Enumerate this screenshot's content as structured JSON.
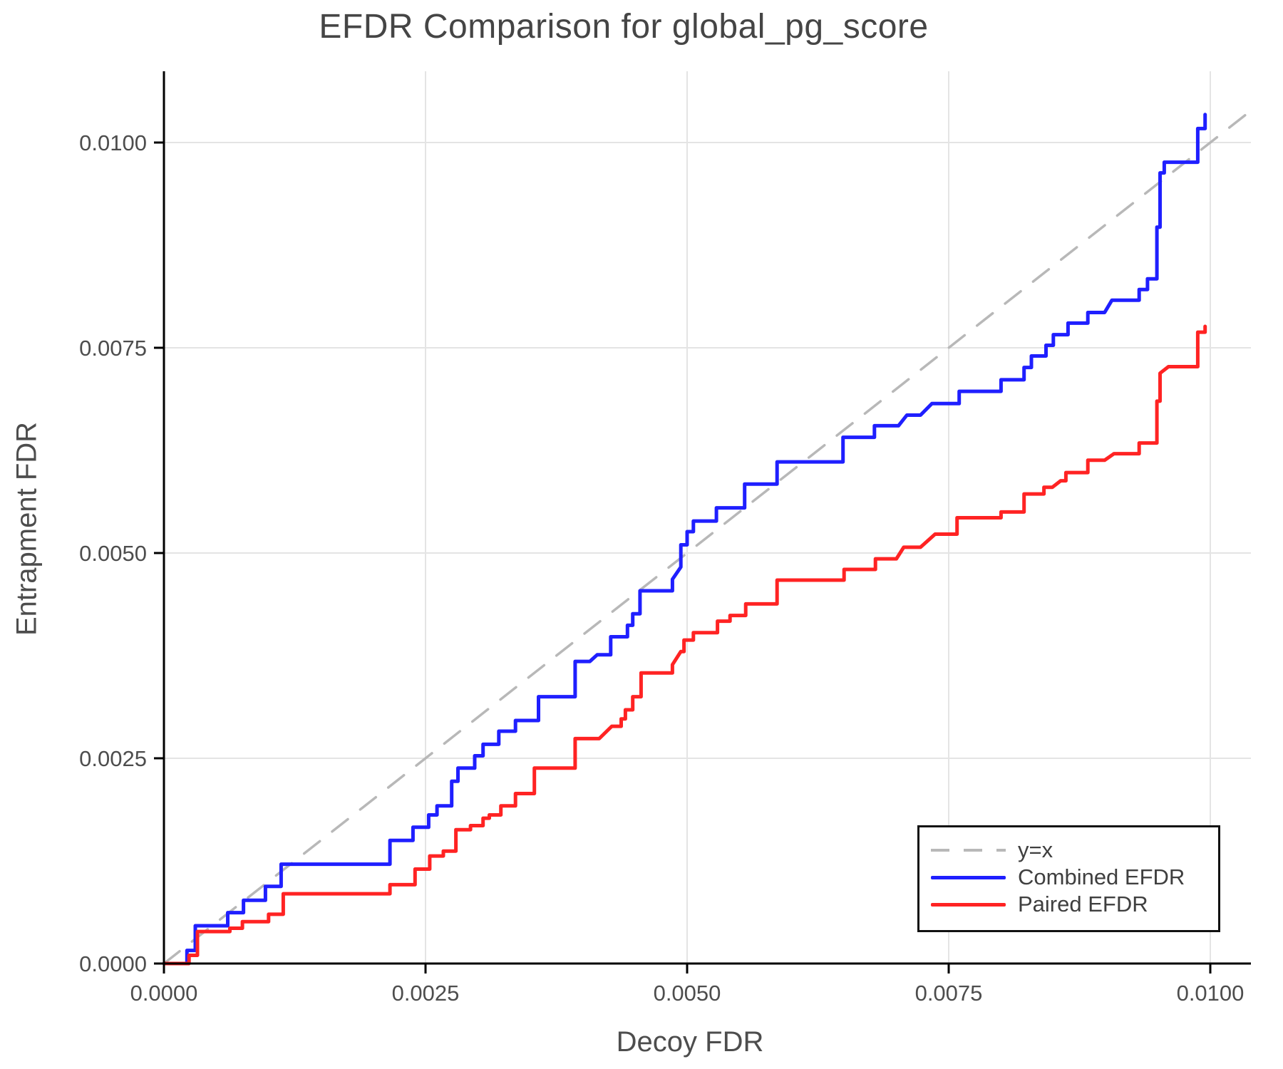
{
  "title": "EFDR Comparison for global_pg_score",
  "x_axis": {
    "label": "Decoy FDR",
    "tick_labels": [
      "0.0000",
      "0.0025",
      "0.0050",
      "0.0075",
      "0.0100"
    ],
    "tick_values": [
      0,
      0.0025,
      0.005,
      0.0075,
      0.01
    ]
  },
  "y_axis": {
    "label": "Entrapment FDR",
    "tick_labels": [
      "0.0000",
      "0.0025",
      "0.0050",
      "0.0075",
      "0.0100"
    ],
    "tick_values": [
      0,
      0.0025,
      0.005,
      0.0075,
      0.01
    ]
  },
  "legend": {
    "items": [
      {
        "label": "y=x",
        "color": "#b8b8b8",
        "style": "dashed"
      },
      {
        "label": "Combined EFDR",
        "color": "#1f1fff",
        "style": "solid"
      },
      {
        "label": "Paired EFDR",
        "color": "#ff2323",
        "style": "solid"
      }
    ],
    "position": "lower right"
  },
  "colors": {
    "grid": "#e4e4e4",
    "spine": "#000000",
    "tick_text": "#4d4d4d",
    "title_text": "#454545",
    "reference_line": "#b8b8b8",
    "combined": "#1f1fff",
    "paired": "#ff2323"
  },
  "chart_data": {
    "type": "line",
    "title": "EFDR Comparison for global_pg_score",
    "xlabel": "Decoy FDR",
    "ylabel": "Entrapment FDR",
    "xlim": [
      0,
      0.010389
    ],
    "ylim": [
      0,
      0.010868
    ],
    "grid": true,
    "legend_position": "lower right",
    "series": [
      {
        "name": "y=x",
        "style": "dashed",
        "color": "#b8b8b8",
        "points": [
          [
            0,
            0
          ],
          [
            0.010389,
            0.010389
          ]
        ]
      },
      {
        "name": "Combined EFDR",
        "style": "solid",
        "color": "#1f1fff",
        "points": [
          [
            0,
            0
          ],
          [
            0.00022,
            0
          ],
          [
            0.00022,
            0.00016
          ],
          [
            0.0003,
            0.00016
          ],
          [
            0.0003,
            0.00046
          ],
          [
            0.00061,
            0.00046
          ],
          [
            0.00061,
            0.00062
          ],
          [
            0.00076,
            0.00062
          ],
          [
            0.00076,
            0.00077
          ],
          [
            0.00097,
            0.00077
          ],
          [
            0.00097,
            0.00094
          ],
          [
            0.00112,
            0.00094
          ],
          [
            0.00112,
            0.00121
          ],
          [
            0.00216,
            0.00121
          ],
          [
            0.00216,
            0.0015
          ],
          [
            0.00238,
            0.0015
          ],
          [
            0.00238,
            0.00166
          ],
          [
            0.00253,
            0.00166
          ],
          [
            0.00253,
            0.00181
          ],
          [
            0.00261,
            0.00181
          ],
          [
            0.00261,
            0.00192
          ],
          [
            0.00275,
            0.00192
          ],
          [
            0.00275,
            0.00222
          ],
          [
            0.00281,
            0.00222
          ],
          [
            0.00281,
            0.00238
          ],
          [
            0.00297,
            0.00238
          ],
          [
            0.00297,
            0.00253
          ],
          [
            0.00305,
            0.00253
          ],
          [
            0.00305,
            0.00267
          ],
          [
            0.0032,
            0.00267
          ],
          [
            0.0032,
            0.00283
          ],
          [
            0.00336,
            0.00283
          ],
          [
            0.00336,
            0.00296
          ],
          [
            0.00358,
            0.00296
          ],
          [
            0.00358,
            0.00325
          ],
          [
            0.00393,
            0.00325
          ],
          [
            0.00393,
            0.00368
          ],
          [
            0.00407,
            0.00368
          ],
          [
            0.00414,
            0.00376
          ],
          [
            0.00427,
            0.00376
          ],
          [
            0.00427,
            0.00398
          ],
          [
            0.00443,
            0.00398
          ],
          [
            0.00443,
            0.00412
          ],
          [
            0.00448,
            0.00412
          ],
          [
            0.00448,
            0.00426
          ],
          [
            0.00455,
            0.00426
          ],
          [
            0.00455,
            0.00454
          ],
          [
            0.00486,
            0.00454
          ],
          [
            0.00486,
            0.00468
          ],
          [
            0.00494,
            0.00483
          ],
          [
            0.00494,
            0.0051
          ],
          [
            0.005,
            0.0051
          ],
          [
            0.005,
            0.00526
          ],
          [
            0.00506,
            0.00526
          ],
          [
            0.00506,
            0.00539
          ],
          [
            0.00528,
            0.00539
          ],
          [
            0.00528,
            0.00555
          ],
          [
            0.00555,
            0.00555
          ],
          [
            0.00555,
            0.00584
          ],
          [
            0.00586,
            0.00584
          ],
          [
            0.00586,
            0.00611
          ],
          [
            0.00649,
            0.00611
          ],
          [
            0.00649,
            0.00641
          ],
          [
            0.00679,
            0.00641
          ],
          [
            0.00679,
            0.00655
          ],
          [
            0.00702,
            0.00655
          ],
          [
            0.0071,
            0.00668
          ],
          [
            0.00723,
            0.00668
          ],
          [
            0.00734,
            0.00682
          ],
          [
            0.0076,
            0.00682
          ],
          [
            0.0076,
            0.00697
          ],
          [
            0.008,
            0.00697
          ],
          [
            0.008,
            0.00711
          ],
          [
            0.00822,
            0.00711
          ],
          [
            0.00822,
            0.00726
          ],
          [
            0.00829,
            0.00726
          ],
          [
            0.00829,
            0.0074
          ],
          [
            0.00843,
            0.0074
          ],
          [
            0.00843,
            0.00753
          ],
          [
            0.0085,
            0.00753
          ],
          [
            0.0085,
            0.00766
          ],
          [
            0.00864,
            0.00766
          ],
          [
            0.00864,
            0.0078
          ],
          [
            0.00883,
            0.0078
          ],
          [
            0.00883,
            0.00793
          ],
          [
            0.00899,
            0.00793
          ],
          [
            0.00906,
            0.00808
          ],
          [
            0.00932,
            0.00808
          ],
          [
            0.00932,
            0.00821
          ],
          [
            0.0094,
            0.00821
          ],
          [
            0.0094,
            0.00834
          ],
          [
            0.00949,
            0.00834
          ],
          [
            0.00949,
            0.00897
          ],
          [
            0.00952,
            0.00897
          ],
          [
            0.00952,
            0.00963
          ],
          [
            0.00956,
            0.00963
          ],
          [
            0.00956,
            0.00976
          ],
          [
            0.00988,
            0.00976
          ],
          [
            0.00988,
            0.01017
          ],
          [
            0.00995,
            0.01017
          ],
          [
            0.00995,
            0.01034
          ]
        ]
      },
      {
        "name": "Paired EFDR",
        "style": "solid",
        "color": "#ff2323",
        "points": [
          [
            0,
            0
          ],
          [
            0.00024,
            0
          ],
          [
            0.00024,
            0.0001
          ],
          [
            0.00032,
            0.0001
          ],
          [
            0.00032,
            0.00039
          ],
          [
            0.00063,
            0.00039
          ],
          [
            0.00063,
            0.00043
          ],
          [
            0.00075,
            0.00043
          ],
          [
            0.00075,
            0.00051
          ],
          [
            0.001,
            0.00051
          ],
          [
            0.001,
            0.0006
          ],
          [
            0.00114,
            0.0006
          ],
          [
            0.00114,
            0.00085
          ],
          [
            0.00216,
            0.00085
          ],
          [
            0.00216,
            0.00096
          ],
          [
            0.0024,
            0.00096
          ],
          [
            0.0024,
            0.00115
          ],
          [
            0.00254,
            0.00115
          ],
          [
            0.00254,
            0.00131
          ],
          [
            0.00267,
            0.00131
          ],
          [
            0.00267,
            0.00137
          ],
          [
            0.00279,
            0.00137
          ],
          [
            0.00279,
            0.00163
          ],
          [
            0.00293,
            0.00163
          ],
          [
            0.00293,
            0.00168
          ],
          [
            0.00305,
            0.00168
          ],
          [
            0.00305,
            0.00177
          ],
          [
            0.00311,
            0.00177
          ],
          [
            0.00311,
            0.00181
          ],
          [
            0.00322,
            0.00181
          ],
          [
            0.00322,
            0.00192
          ],
          [
            0.00336,
            0.00192
          ],
          [
            0.00336,
            0.00207
          ],
          [
            0.00354,
            0.00207
          ],
          [
            0.00354,
            0.00238
          ],
          [
            0.00393,
            0.00238
          ],
          [
            0.00393,
            0.00274
          ],
          [
            0.00416,
            0.00274
          ],
          [
            0.00428,
            0.00289
          ],
          [
            0.00437,
            0.00289
          ],
          [
            0.00437,
            0.00298
          ],
          [
            0.00441,
            0.00298
          ],
          [
            0.00441,
            0.00309
          ],
          [
            0.00448,
            0.00309
          ],
          [
            0.00448,
            0.00325
          ],
          [
            0.00456,
            0.00325
          ],
          [
            0.00456,
            0.00354
          ],
          [
            0.00486,
            0.00354
          ],
          [
            0.00486,
            0.00364
          ],
          [
            0.00494,
            0.0038
          ],
          [
            0.00497,
            0.0038
          ],
          [
            0.00497,
            0.00394
          ],
          [
            0.00506,
            0.00394
          ],
          [
            0.00506,
            0.00403
          ],
          [
            0.00529,
            0.00403
          ],
          [
            0.00529,
            0.00417
          ],
          [
            0.00541,
            0.00417
          ],
          [
            0.00541,
            0.00424
          ],
          [
            0.00556,
            0.00424
          ],
          [
            0.00556,
            0.00438
          ],
          [
            0.00586,
            0.00438
          ],
          [
            0.00586,
            0.00467
          ],
          [
            0.0065,
            0.00467
          ],
          [
            0.0065,
            0.0048
          ],
          [
            0.0068,
            0.0048
          ],
          [
            0.0068,
            0.00493
          ],
          [
            0.007,
            0.00493
          ],
          [
            0.00707,
            0.00507
          ],
          [
            0.00723,
            0.00507
          ],
          [
            0.00737,
            0.00523
          ],
          [
            0.00758,
            0.00523
          ],
          [
            0.00758,
            0.00543
          ],
          [
            0.008,
            0.00543
          ],
          [
            0.008,
            0.0055
          ],
          [
            0.00822,
            0.0055
          ],
          [
            0.00822,
            0.00572
          ],
          [
            0.00841,
            0.00572
          ],
          [
            0.00841,
            0.0058
          ],
          [
            0.00849,
            0.0058
          ],
          [
            0.00857,
            0.00588
          ],
          [
            0.00862,
            0.00588
          ],
          [
            0.00862,
            0.00598
          ],
          [
            0.00883,
            0.00598
          ],
          [
            0.00883,
            0.00613
          ],
          [
            0.00899,
            0.00613
          ],
          [
            0.00908,
            0.00621
          ],
          [
            0.00932,
            0.00621
          ],
          [
            0.00932,
            0.00634
          ],
          [
            0.00949,
            0.00634
          ],
          [
            0.00949,
            0.00685
          ],
          [
            0.00952,
            0.00685
          ],
          [
            0.00952,
            0.00719
          ],
          [
            0.0096,
            0.00727
          ],
          [
            0.00988,
            0.00727
          ],
          [
            0.00988,
            0.00769
          ],
          [
            0.00995,
            0.00769
          ],
          [
            0.00995,
            0.00776
          ]
        ]
      }
    ]
  }
}
